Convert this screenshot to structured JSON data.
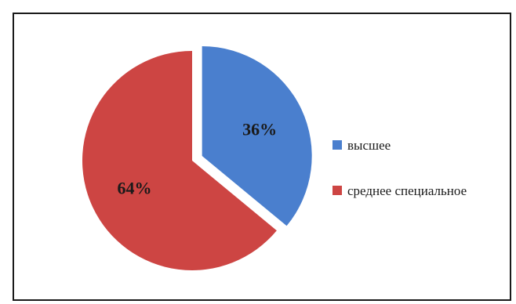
{
  "chart_data": {
    "type": "pie",
    "categories": [
      "высшее",
      "среднее специальное"
    ],
    "values": [
      36,
      64
    ],
    "data_labels": [
      "36%",
      "64%"
    ],
    "colors": [
      "#4a7fce",
      "#cd4543"
    ],
    "legend_position": "right",
    "exploded_slice": 0
  }
}
